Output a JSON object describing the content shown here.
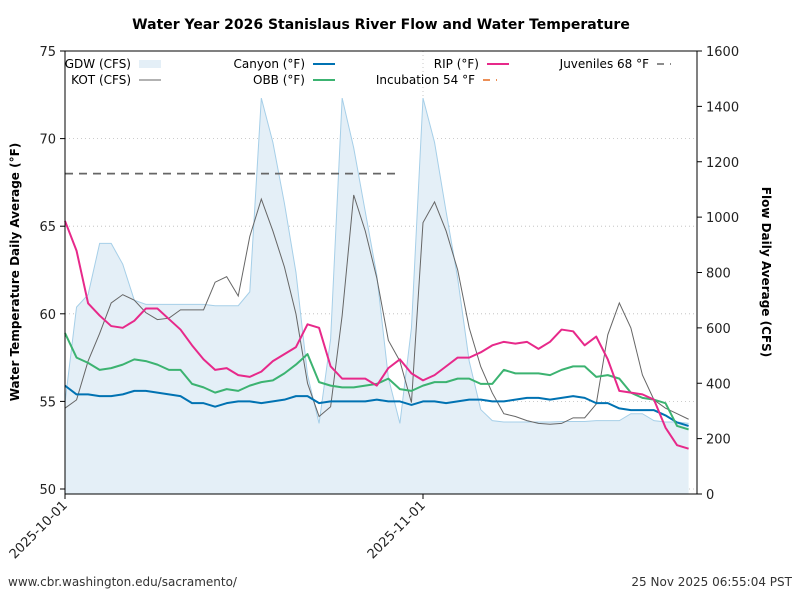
{
  "chart_data": {
    "type": "line",
    "title": "Water Year 2026 Stanislaus River Flow and Water Temperature",
    "ylabel": "Water Temperature Daily Average (°F)",
    "y2label": "Flow Daily Average (CFS)",
    "ylim": [
      50,
      75
    ],
    "y2lim": [
      0,
      1600
    ],
    "yticks": [
      50,
      55,
      60,
      65,
      70,
      75
    ],
    "y2ticks": [
      0,
      200,
      400,
      600,
      800,
      1000,
      1200,
      1400,
      1600
    ],
    "xticks": [
      {
        "label": "2025-10-01",
        "day": 0
      },
      {
        "label": "2025-11-01",
        "day": 31
      }
    ],
    "x_days": 55,
    "x_start": "2025-10-01",
    "grid": true,
    "legend_position": "top",
    "thresholds": [
      {
        "name": "Juveniles 68 °F",
        "value": 68,
        "day_start": 0,
        "day_end": 29,
        "color": "#666666"
      },
      {
        "name": "Incubation 54 °F",
        "value": 54,
        "day_start": null,
        "day_end": null,
        "color": "#e66a1f"
      }
    ],
    "flow_series": [
      {
        "name": "GDW (CFS)",
        "style": "area",
        "color": "#a6cfe8",
        "fill": "#e4eff7",
        "values": [
          330,
          675,
          720,
          905,
          905,
          830,
          700,
          685,
          685,
          685,
          685,
          685,
          685,
          680,
          680,
          680,
          730,
          1430,
          1270,
          1050,
          800,
          430,
          255,
          560,
          1430,
          1250,
          1020,
          790,
          420,
          255,
          600,
          1430,
          1270,
          1020,
          780,
          480,
          305,
          265,
          260,
          260,
          260,
          260,
          260,
          262,
          262,
          262,
          265,
          265,
          265,
          290,
          290,
          265,
          260,
          260,
          255
        ]
      },
      {
        "name": "KOT (CFS)",
        "style": "line",
        "color": "#666666",
        "values": [
          310,
          340,
          480,
          580,
          690,
          720,
          700,
          655,
          630,
          635,
          665,
          665,
          665,
          765,
          785,
          715,
          930,
          1065,
          950,
          820,
          650,
          400,
          280,
          315,
          645,
          1080,
          950,
          780,
          555,
          480,
          330,
          980,
          1055,
          950,
          810,
          600,
          460,
          365,
          290,
          280,
          265,
          255,
          252,
          255,
          275,
          275,
          325,
          575,
          690,
          600,
          430,
          340,
          310,
          290,
          270
        ]
      }
    ],
    "temp_series": [
      {
        "name": "Canyon (°F)",
        "color": "#0072b2",
        "values": [
          55.9,
          55.4,
          55.4,
          55.3,
          55.3,
          55.4,
          55.6,
          55.6,
          55.5,
          55.4,
          55.3,
          54.9,
          54.9,
          54.7,
          54.9,
          55.0,
          55.0,
          54.9,
          55.0,
          55.1,
          55.3,
          55.3,
          54.9,
          55.0,
          55.0,
          55.0,
          55.0,
          55.1,
          55.0,
          55.0,
          54.8,
          55.0,
          55.0,
          54.9,
          55.0,
          55.1,
          55.1,
          55.0,
          55.0,
          55.1,
          55.2,
          55.2,
          55.1,
          55.2,
          55.3,
          55.2,
          54.9,
          54.9,
          54.6,
          54.5,
          54.5,
          54.5,
          54.2,
          53.8,
          53.6
        ]
      },
      {
        "name": "OBB (°F)",
        "color": "#3cb371",
        "values": [
          58.9,
          57.5,
          57.2,
          56.8,
          56.9,
          57.1,
          57.4,
          57.3,
          57.1,
          56.8,
          56.8,
          56.0,
          55.8,
          55.5,
          55.7,
          55.6,
          55.9,
          56.1,
          56.2,
          56.6,
          57.1,
          57.7,
          56.1,
          55.9,
          55.8,
          55.8,
          55.9,
          56.0,
          56.3,
          55.7,
          55.6,
          55.9,
          56.1,
          56.1,
          56.3,
          56.3,
          56.0,
          56.0,
          56.8,
          56.6,
          56.6,
          56.6,
          56.5,
          56.8,
          57.0,
          57.0,
          56.4,
          56.5,
          56.3,
          55.5,
          55.2,
          55.1,
          54.9,
          53.6,
          53.4
        ]
      },
      {
        "name": "RIP (°F)",
        "color": "#e7298a",
        "values": [
          65.3,
          63.6,
          60.6,
          59.9,
          59.3,
          59.2,
          59.6,
          60.3,
          60.3,
          59.7,
          59.1,
          58.2,
          57.4,
          56.8,
          56.9,
          56.5,
          56.4,
          56.7,
          57.3,
          57.7,
          58.1,
          59.4,
          59.2,
          57.0,
          56.3,
          56.3,
          56.3,
          55.9,
          56.9,
          57.4,
          56.6,
          56.2,
          56.5,
          57.0,
          57.5,
          57.5,
          57.8,
          58.2,
          58.4,
          58.3,
          58.4,
          58.0,
          58.4,
          59.1,
          59.0,
          58.2,
          58.7,
          57.4,
          55.6,
          55.5,
          55.4,
          55.1,
          53.5,
          52.5,
          52.3
        ]
      }
    ],
    "legend": [
      {
        "label": "GDW (CFS)",
        "kind": "patch",
        "color": "#e4eff7"
      },
      {
        "label": "KOT (CFS)",
        "kind": "line",
        "color": "#666666"
      },
      {
        "label": "Canyon (°F)",
        "kind": "line",
        "color": "#0072b2"
      },
      {
        "label": "OBB (°F)",
        "kind": "line",
        "color": "#3cb371"
      },
      {
        "label": "RIP (°F)",
        "kind": "line",
        "color": "#e7298a"
      },
      {
        "label": "Incubation 54 °F",
        "kind": "dash",
        "color": "#e66a1f"
      },
      {
        "label": "Juveniles 68 °F",
        "kind": "dash",
        "color": "#666666"
      }
    ]
  },
  "footer": {
    "url": "www.cbr.washington.edu/sacramento/",
    "timestamp": "25 Nov 2025 06:55:04 PST"
  }
}
